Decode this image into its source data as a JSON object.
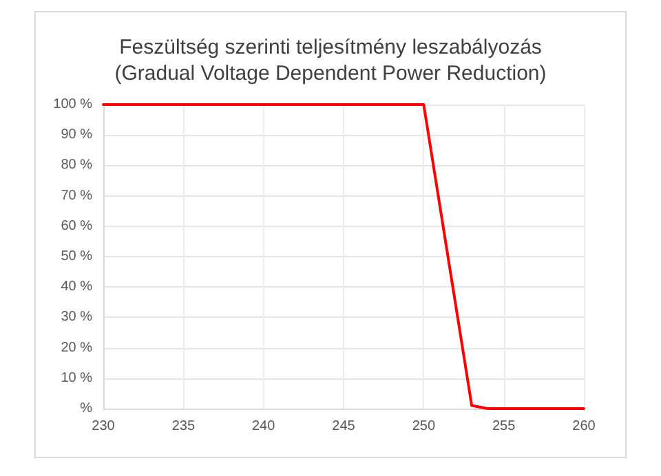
{
  "chart_data": {
    "type": "line",
    "title": "Feszültség szerinti teljesítmény leszabályozás",
    "subtitle": "(Gradual Voltage Dependent Power Reduction)",
    "x": [
      230,
      250,
      253,
      254,
      260
    ],
    "series": [
      {
        "color": "#ff0000",
        "values": [
          100,
          100,
          1,
          0,
          0
        ]
      }
    ],
    "xlim": [
      230,
      260
    ],
    "xticks": [
      230,
      235,
      240,
      245,
      250,
      255,
      260
    ],
    "ylim": [
      0,
      100
    ],
    "yticks": [
      {
        "value": 0,
        "label": "%"
      },
      {
        "value": 10,
        "label": "10 %"
      },
      {
        "value": 20,
        "label": "20 %"
      },
      {
        "value": 30,
        "label": "30 %"
      },
      {
        "value": 40,
        "label": "40 %"
      },
      {
        "value": 50,
        "label": "50 %"
      },
      {
        "value": 60,
        "label": "60 %"
      },
      {
        "value": 70,
        "label": "70 %"
      },
      {
        "value": 80,
        "label": "80 %"
      },
      {
        "value": 90,
        "label": "90 %"
      },
      {
        "value": 100,
        "label": "100 %"
      }
    ],
    "grid": true,
    "marker": "none",
    "line_style": "solid"
  }
}
